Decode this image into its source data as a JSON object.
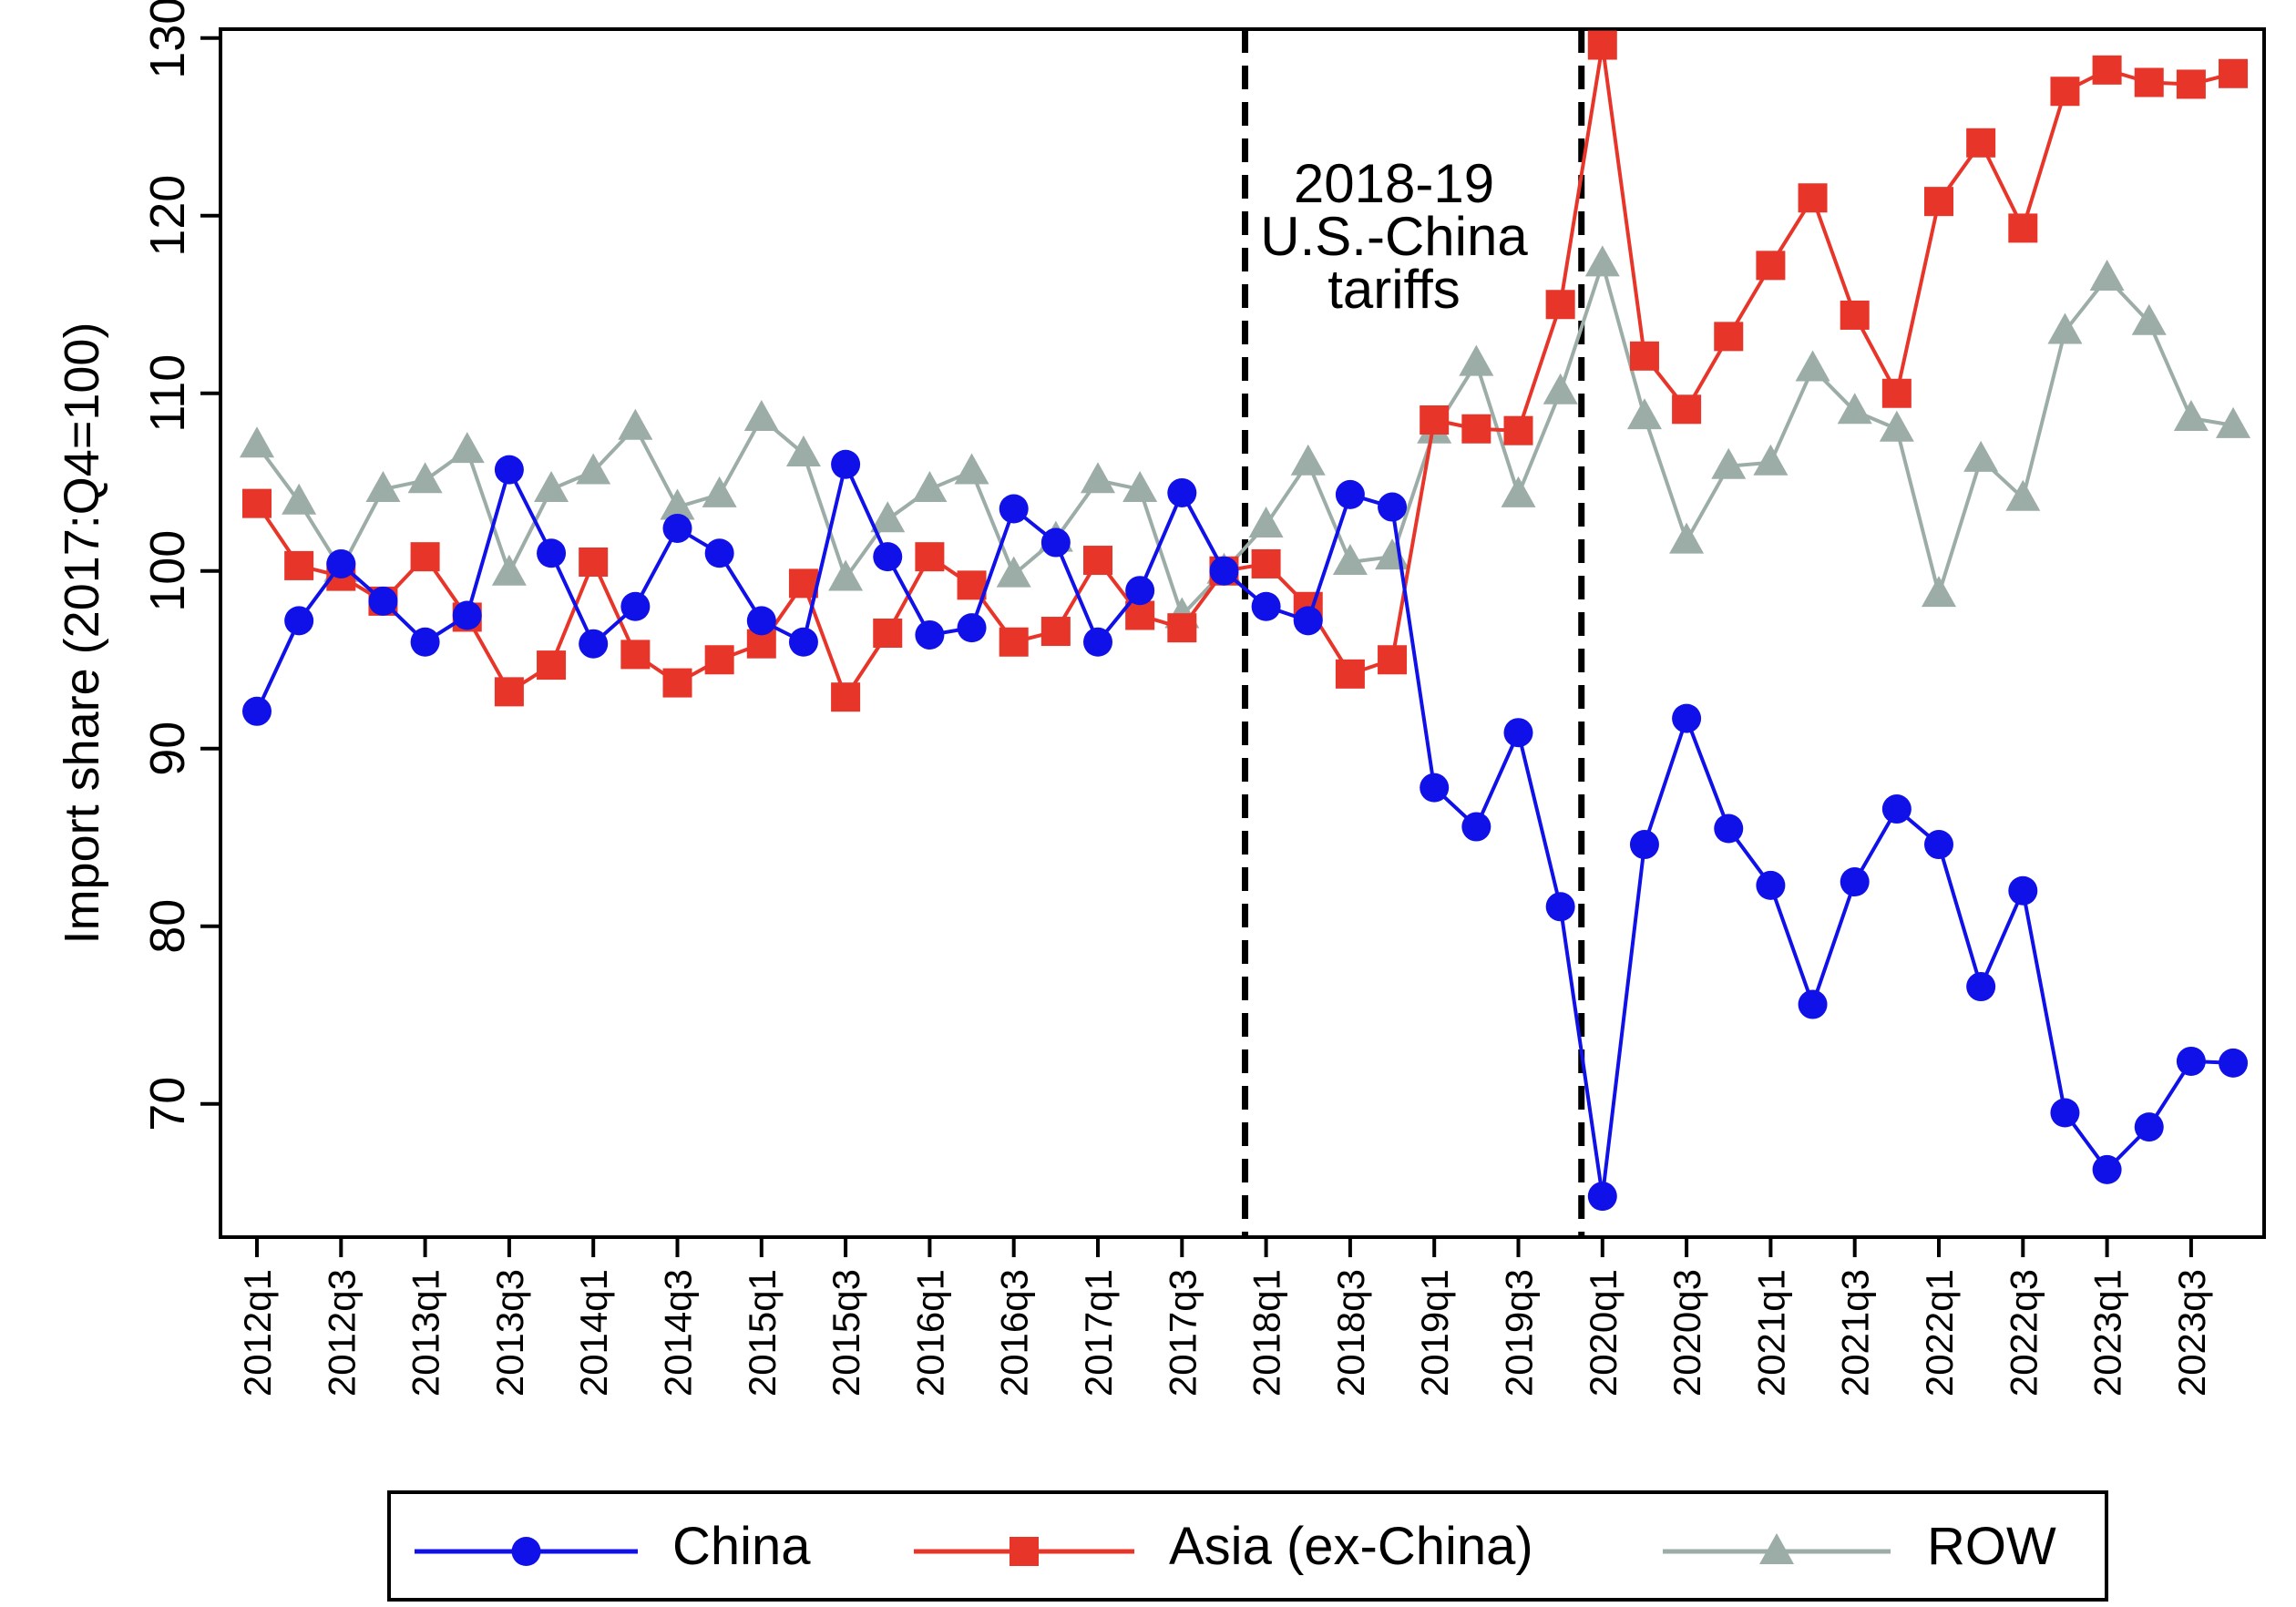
{
  "chart_data": {
    "type": "line",
    "title": "",
    "xlabel": "",
    "ylabel": "Import share (2017:Q4=100)",
    "ylim": [
      62.5,
      130.5
    ],
    "yticks": [
      70,
      80,
      90,
      100,
      110,
      120,
      130
    ],
    "ytick_labels": [
      "70",
      "80",
      "90",
      "100",
      "110",
      "120",
      "130"
    ],
    "grid": false,
    "x": [
      "2012q1",
      "2012q2",
      "2012q3",
      "2012q4",
      "2013q1",
      "2013q2",
      "2013q3",
      "2013q4",
      "2014q1",
      "2014q2",
      "2014q3",
      "2014q4",
      "2015q1",
      "2015q2",
      "2015q3",
      "2015q4",
      "2016q1",
      "2016q2",
      "2016q3",
      "2016q4",
      "2017q1",
      "2017q2",
      "2017q3",
      "2017q4",
      "2018q1",
      "2018q2",
      "2018q3",
      "2018q4",
      "2019q1",
      "2019q2",
      "2019q3",
      "2019q4",
      "2020q1",
      "2020q2",
      "2020q3",
      "2020q4",
      "2021q1",
      "2021q2",
      "2021q3",
      "2021q4",
      "2022q1",
      "2022q2",
      "2022q3",
      "2022q4",
      "2023q1",
      "2023q2",
      "2023q3",
      "2023q4"
    ],
    "xtick_labels": [
      "2012q1",
      "2012q3",
      "2013q1",
      "2013q3",
      "2014q1",
      "2014q3",
      "2015q1",
      "2015q3",
      "2016q1",
      "2016q3",
      "2017q1",
      "2017q3",
      "2018q1",
      "2018q3",
      "2019q1",
      "2019q3",
      "2020q1",
      "2020q3",
      "2021q1",
      "2021q3",
      "2022q1",
      "2022q3",
      "2023q1",
      "2023q3"
    ],
    "series": [
      {
        "name": "China",
        "color": "#1010e8",
        "marker": "circle",
        "values": [
          92.1,
          97.2,
          100.4,
          98.3,
          96.0,
          97.5,
          105.7,
          101.0,
          95.9,
          98.0,
          102.4,
          101.0,
          97.2,
          96.0,
          106.0,
          100.8,
          96.4,
          96.8,
          103.5,
          101.6,
          96.0,
          98.9,
          104.4,
          100.0,
          98.0,
          97.2,
          104.3,
          103.6,
          87.8,
          85.6,
          90.9,
          81.1,
          64.8,
          84.6,
          91.7,
          85.5,
          82.3,
          75.6,
          82.5,
          86.6,
          84.6,
          76.6,
          82.0,
          69.5,
          66.3,
          68.7,
          72.4,
          72.3
        ]
      },
      {
        "name": "Asia (ex-China)",
        "color": "#e8352a",
        "marker": "square",
        "values": [
          103.8,
          100.3,
          99.7,
          98.3,
          100.8,
          97.4,
          93.2,
          94.7,
          100.5,
          95.3,
          93.7,
          95.0,
          95.9,
          99.3,
          92.9,
          96.5,
          100.8,
          99.2,
          96.0,
          96.6,
          100.6,
          97.5,
          96.8,
          100.0,
          100.4,
          98.0,
          94.2,
          95.0,
          108.5,
          108.0,
          107.9,
          115.0,
          129.6,
          112.1,
          109.1,
          113.2,
          117.2,
          121.0,
          114.4,
          110.0,
          120.8,
          124.1,
          119.3,
          127.0,
          128.2,
          127.5,
          127.4,
          128.0
        ]
      },
      {
        "name": "ROW",
        "color": "#9cada8",
        "marker": "triangle",
        "values": [
          107.1,
          103.9,
          100.1,
          104.6,
          105.1,
          106.8,
          99.9,
          104.6,
          105.6,
          108.1,
          103.6,
          104.3,
          108.6,
          106.6,
          99.6,
          102.9,
          104.6,
          105.6,
          99.8,
          101.8,
          105.1,
          104.6,
          97.5,
          100.0,
          102.6,
          106.1,
          100.5,
          100.8,
          107.9,
          111.7,
          104.3,
          110.1,
          117.3,
          108.7,
          101.7,
          105.9,
          106.1,
          111.4,
          109.0,
          108.0,
          98.7,
          106.3,
          104.1,
          113.5,
          116.5,
          114.0,
          108.6,
          108.2
        ]
      }
    ],
    "vlines": [
      23.5,
      31.5
    ],
    "annotation": [
      "2018-19",
      "U.S.-China",
      "tariffs"
    ],
    "legend": {
      "placement": "bottom",
      "entries": [
        "China",
        "Asia (ex-China)",
        "ROW"
      ]
    }
  }
}
